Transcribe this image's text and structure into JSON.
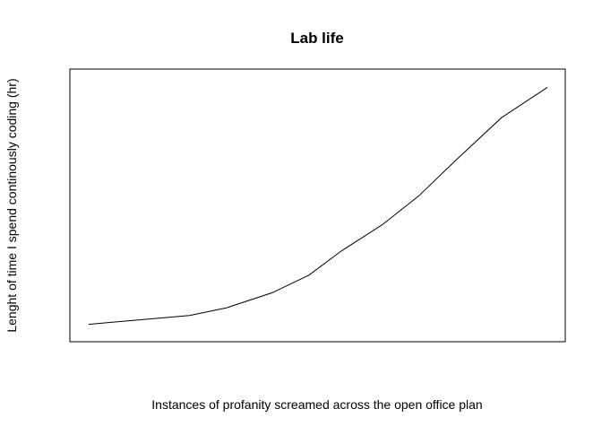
{
  "chart_data": {
    "type": "line",
    "title": "Lab life",
    "xlabel": "Instances of profanity screamed across the open office plan",
    "ylabel": "Lenght of time I spend continously coding (hr)",
    "axes_shown": false,
    "box": true,
    "grid": false,
    "series": [
      {
        "values": [
          0.03,
          0.065,
          0.095,
          0.155,
          0.225,
          0.32,
          0.425,
          0.54,
          0.68,
          0.85,
          0.97
        ]
      }
    ],
    "x": [
      0.0,
      0.22,
      0.3,
      0.4,
      0.48,
      0.55,
      0.64,
      0.72,
      0.8,
      0.9,
      1.0
    ],
    "xlim": [
      0,
      1
    ],
    "ylim": [
      0,
      1
    ],
    "line_color": "#000000"
  }
}
